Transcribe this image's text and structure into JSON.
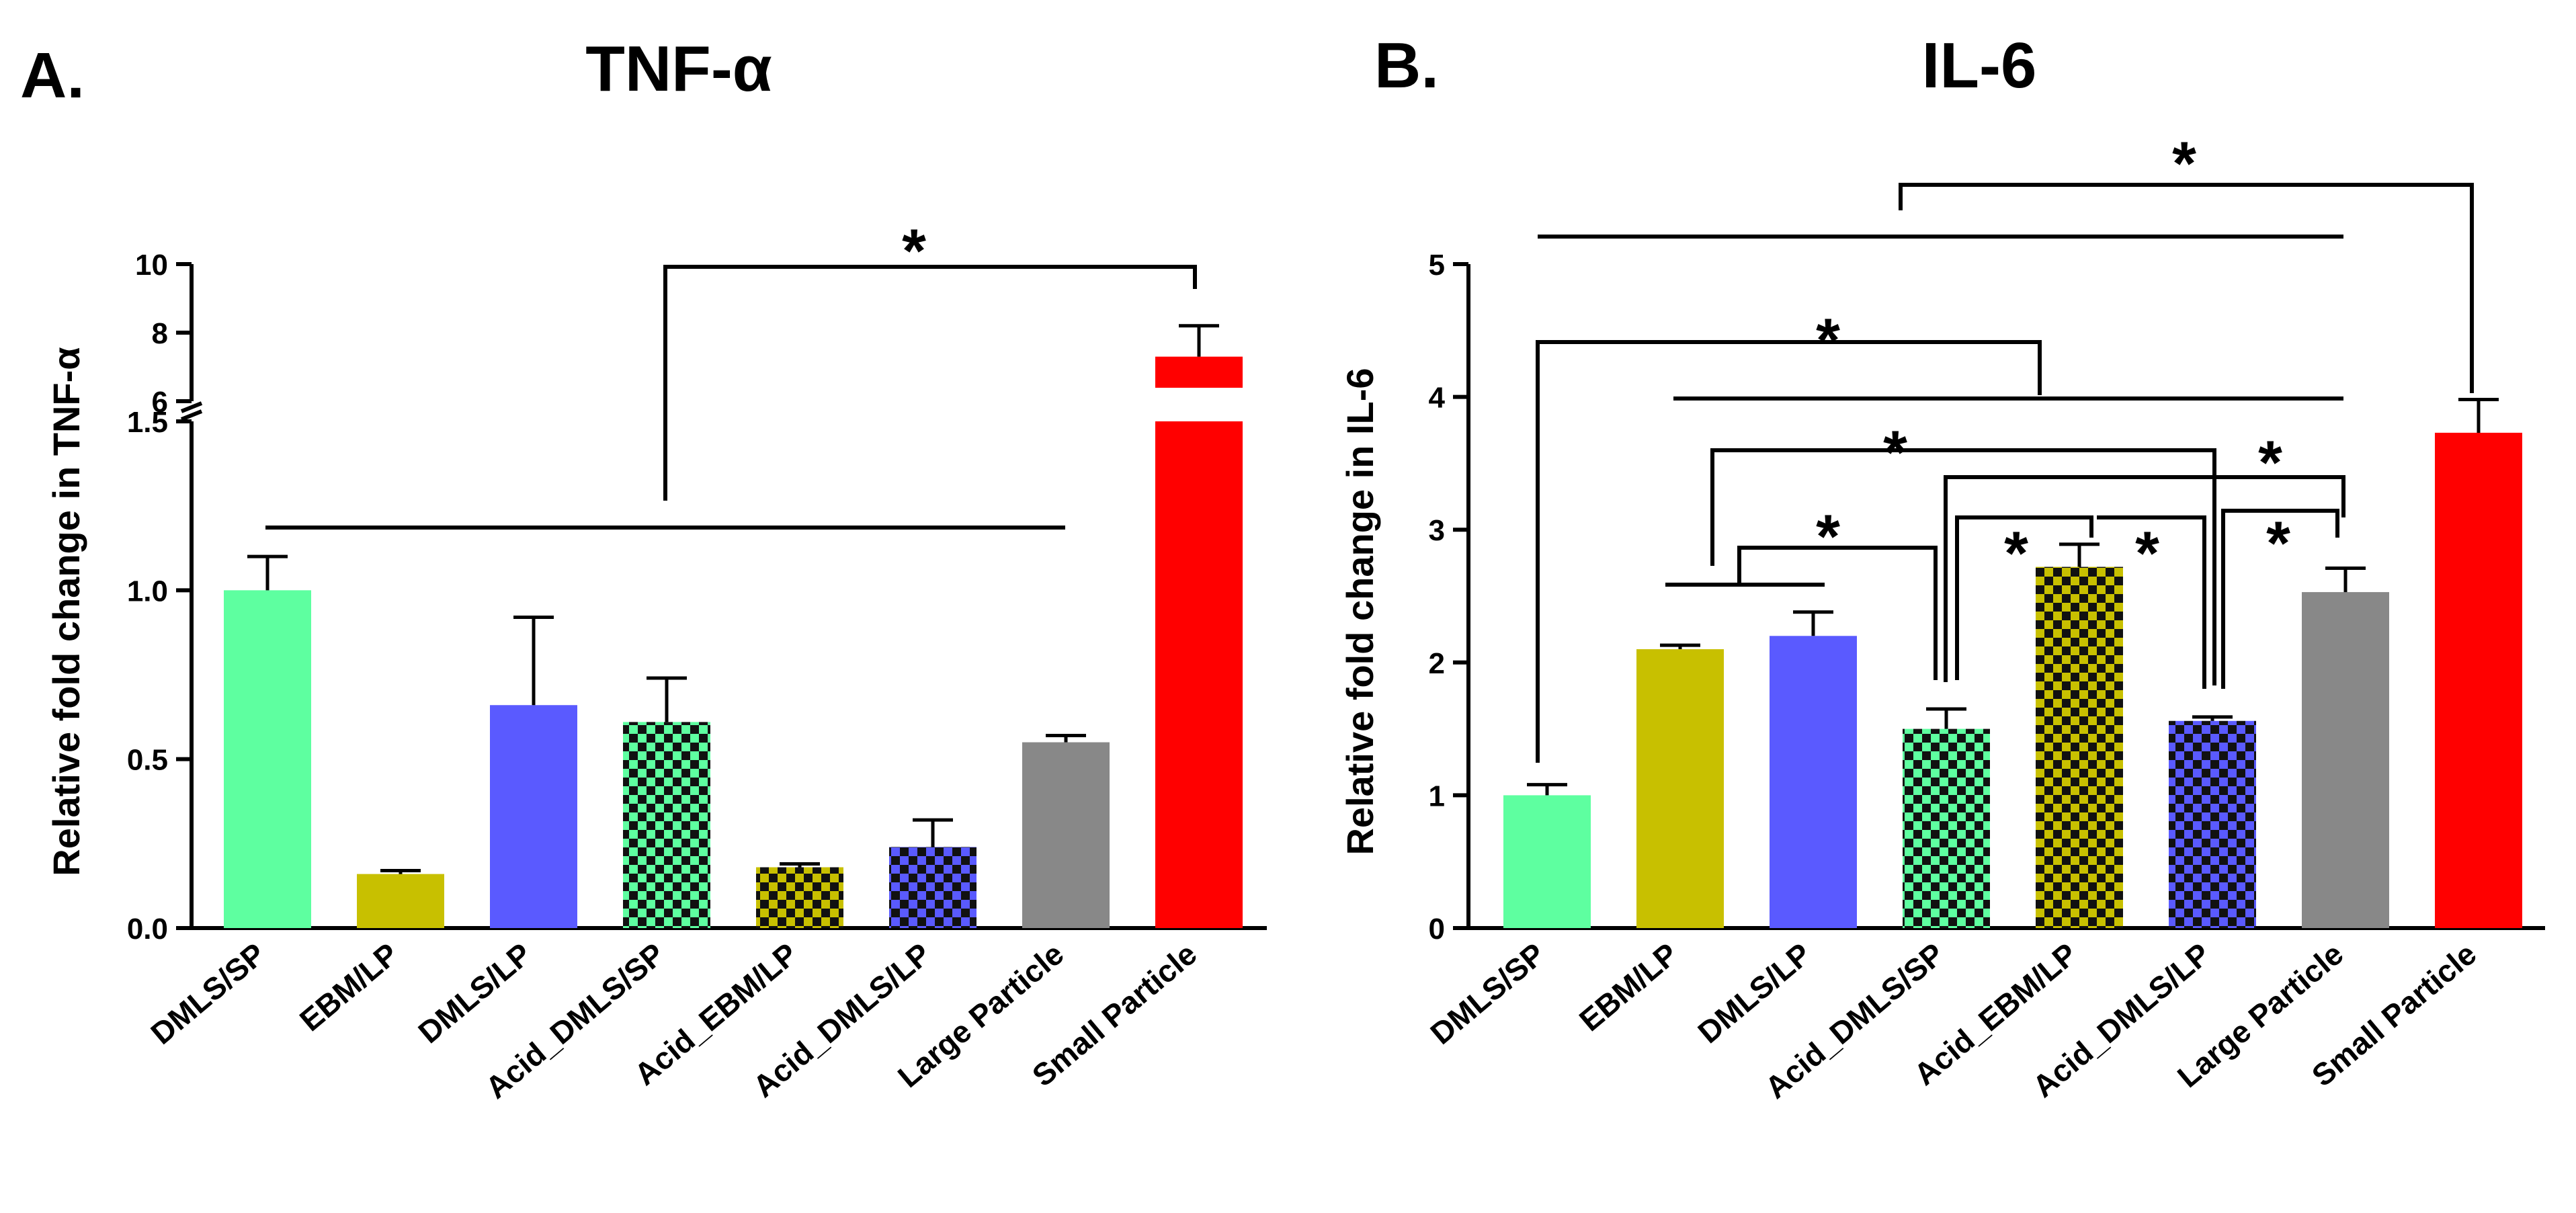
{
  "chart_data": [
    {
      "type": "bar",
      "panel": "A.",
      "title": "TNF-α",
      "ylabel": "Relative fold change in TNF-α",
      "xlabel": "",
      "categories": [
        "DMLS/SP",
        "EBM/LP",
        "DMLS/LP",
        "Acid_DMLS/SP",
        "Acid_EBM/LP",
        "Acid_DMLS/LP",
        "Large Particle",
        "Small Particle"
      ],
      "values": [
        1.0,
        0.16,
        0.66,
        0.61,
        0.18,
        0.24,
        0.55,
        7.3
      ],
      "errors": [
        0.1,
        0.01,
        0.26,
        0.13,
        0.01,
        0.08,
        0.02,
        0.9
      ],
      "colors": [
        "#5effa0",
        "#c8c000",
        "#5a5aff",
        "#5effa0",
        "#c8c000",
        "#5a5aff",
        "#888888",
        "#ff0000"
      ],
      "patterned": [
        false,
        false,
        false,
        true,
        true,
        true,
        false,
        false
      ],
      "y_axis_break": {
        "lower_range": [
          0,
          1.5
        ],
        "upper_range": [
          6,
          10
        ]
      },
      "lower_ticks": [
        "0.0",
        "0.5",
        "1.0",
        "1.5"
      ],
      "upper_ticks": [
        "6",
        "8",
        "10"
      ],
      "significance": [
        "*"
      ]
    },
    {
      "type": "bar",
      "panel": "B.",
      "title": "IL-6",
      "ylabel": "Relative fold change in IL-6",
      "xlabel": "",
      "categories": [
        "DMLS/SP",
        "EBM/LP",
        "DMLS/LP",
        "Acid_DMLS/SP",
        "Acid_EBM/LP",
        "Acid_DMLS/LP",
        "Large Particle",
        "Small Particle"
      ],
      "values": [
        1.0,
        2.1,
        2.2,
        1.5,
        2.72,
        1.56,
        2.53,
        3.73
      ],
      "errors": [
        0.08,
        0.03,
        0.18,
        0.15,
        0.17,
        0.03,
        0.18,
        0.25
      ],
      "colors": [
        "#5effa0",
        "#c8c000",
        "#5a5aff",
        "#5effa0",
        "#c8c000",
        "#5a5aff",
        "#888888",
        "#ff0000"
      ],
      "patterned": [
        false,
        false,
        false,
        true,
        true,
        true,
        false,
        false
      ],
      "ylim": [
        0,
        5
      ],
      "ticks": [
        "0",
        "1",
        "2",
        "3",
        "4",
        "5"
      ],
      "significance": [
        "*",
        "*",
        "*",
        "*",
        "*",
        "*",
        "*",
        "*"
      ]
    }
  ]
}
